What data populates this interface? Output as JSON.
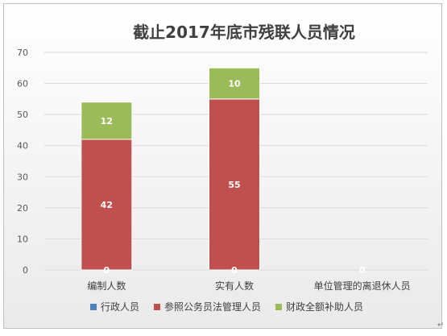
{
  "chart_data": {
    "type": "bar",
    "stacked": true,
    "title": "截止2017年底市残联人员情况",
    "categories": [
      "编制人数",
      "实有人数",
      "单位管理的离退休人员"
    ],
    "series": [
      {
        "name": "行政人员",
        "values": [
          0,
          0,
          0
        ],
        "color": "#4f81bd"
      },
      {
        "name": "参照公务员法管理人员",
        "values": [
          42,
          55,
          0
        ],
        "color": "#c0504d"
      },
      {
        "name": "财政全额补助人员",
        "values": [
          12,
          10,
          0
        ],
        "color": "#9bbb59"
      }
    ],
    "ylim": [
      0,
      70
    ],
    "yticks": [
      0,
      10,
      20,
      30,
      40,
      50,
      60,
      70
    ],
    "grid": true,
    "legend_position": "bottom"
  },
  "page": {
    "paragraph_mark": "↵"
  }
}
